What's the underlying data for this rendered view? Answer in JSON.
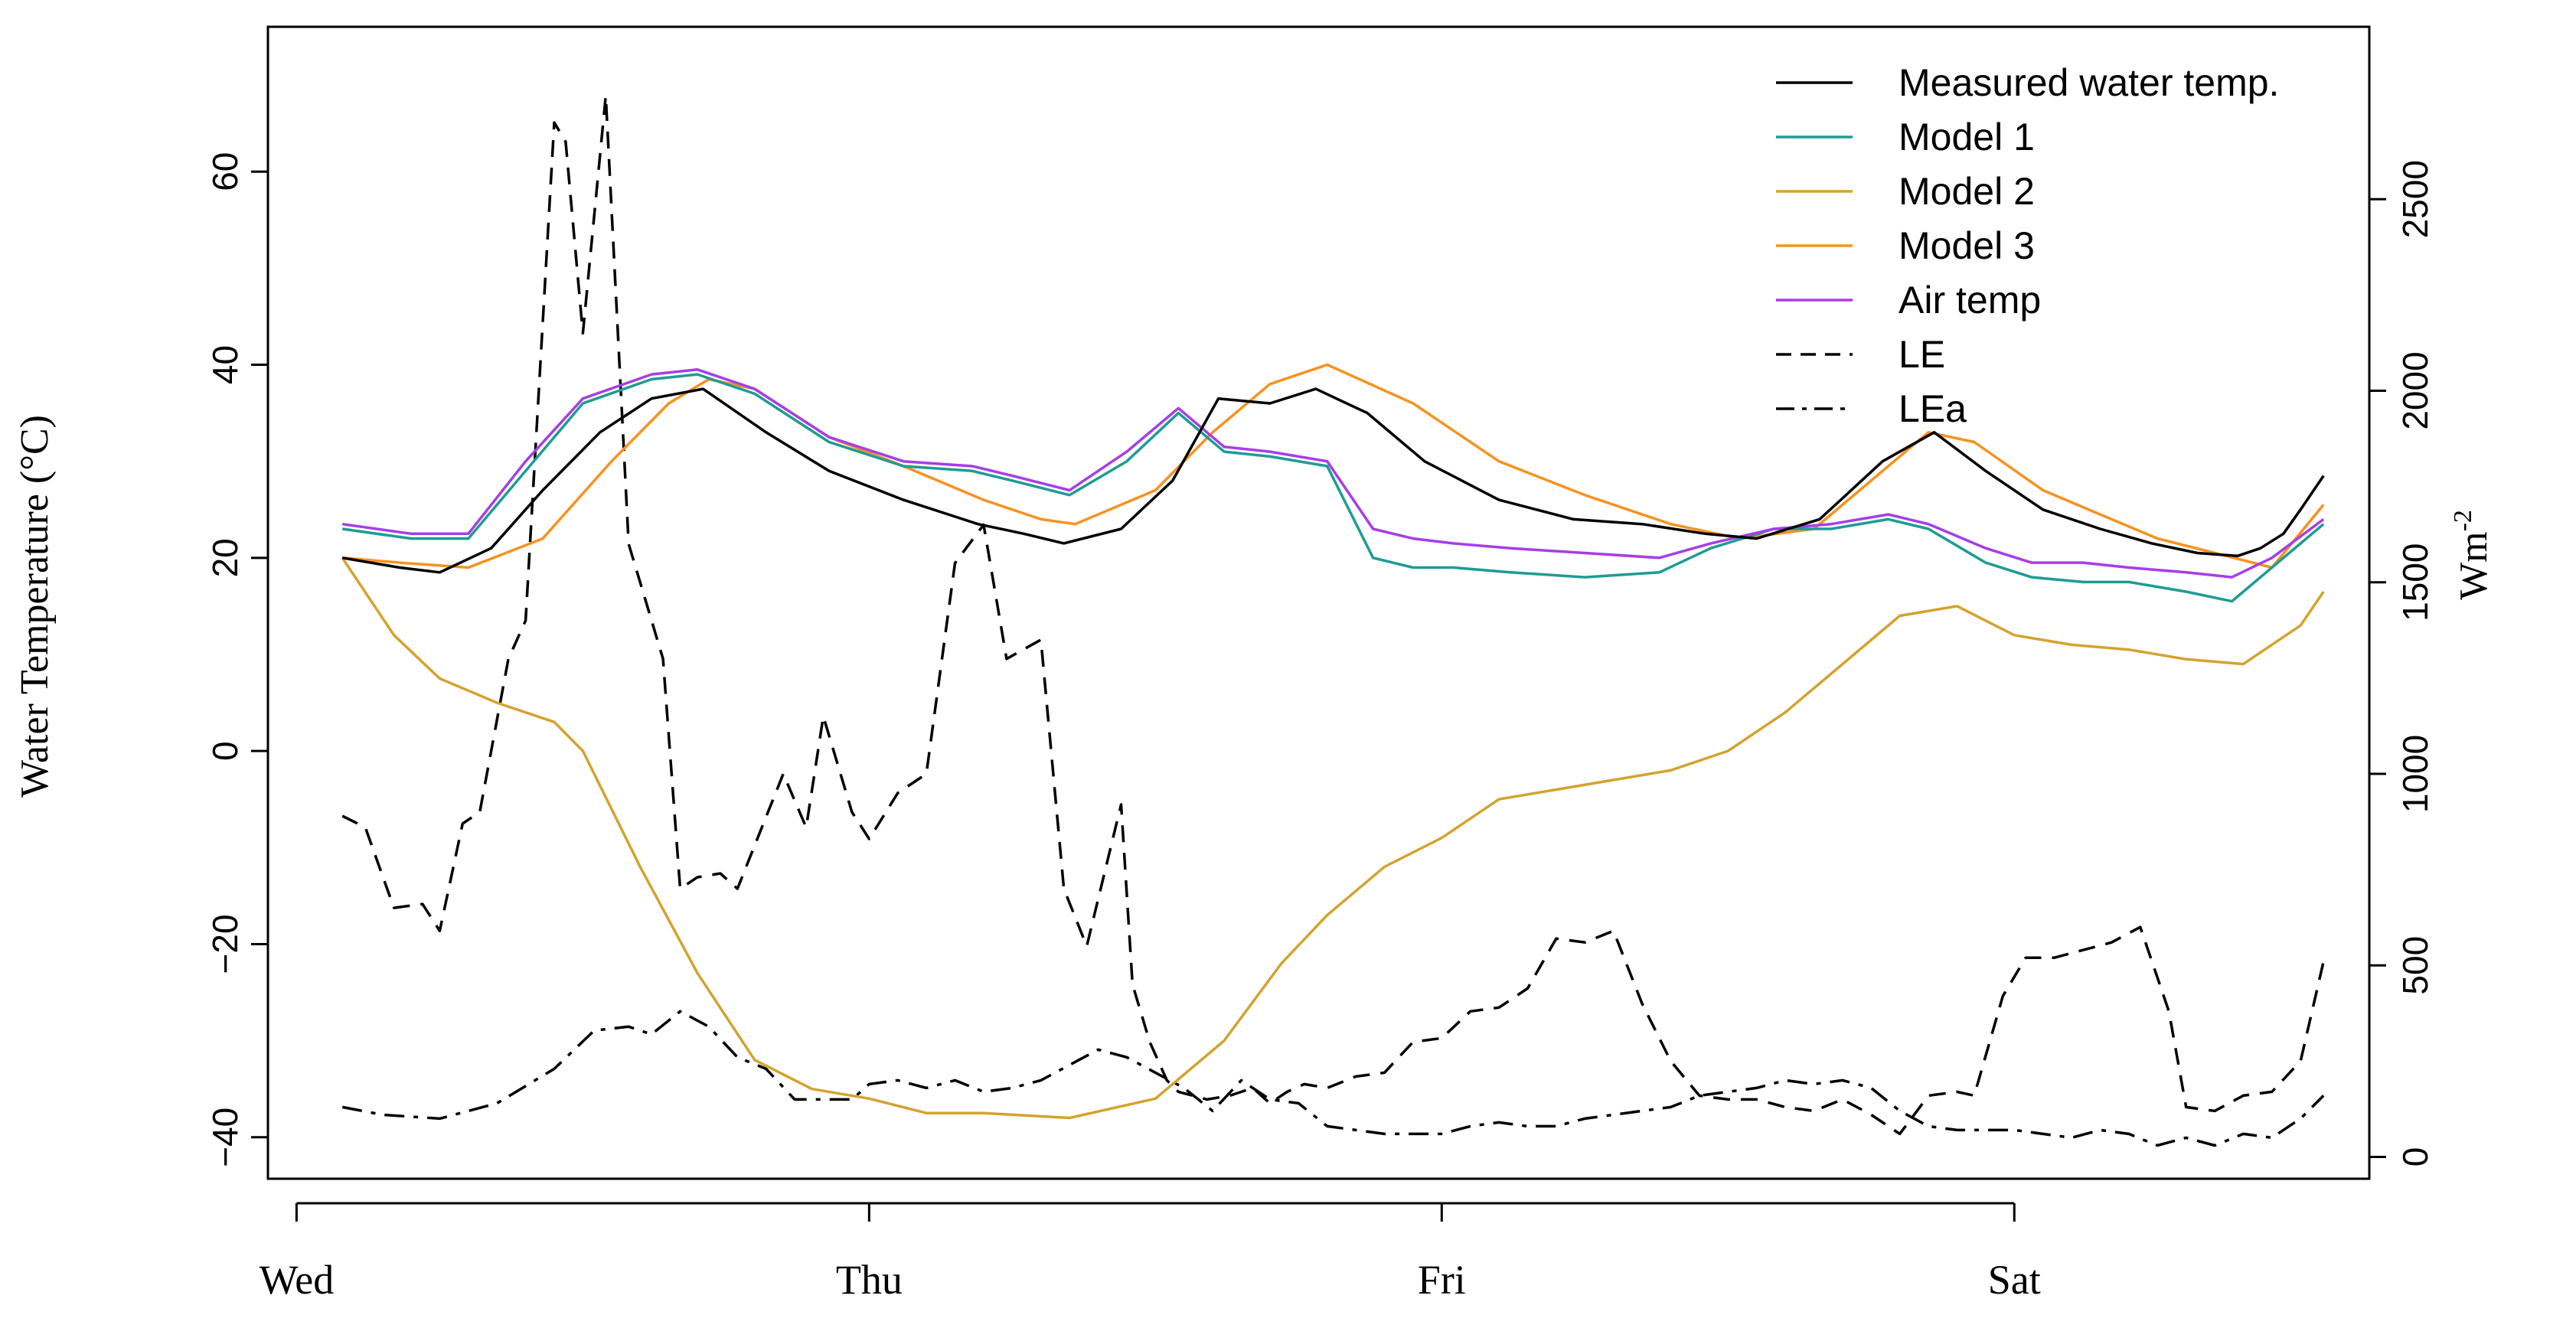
{
  "chart_data": {
    "type": "line",
    "xlabel": "",
    "ylabel": "Water Temperature (°C)",
    "y2label": "Wm",
    "y2label_sup": "-2",
    "x_tick_labels": [
      "Wed",
      "Thu",
      "Fri",
      "Sat"
    ],
    "x_tick_values": [
      0,
      1,
      2,
      3
    ],
    "xlim": [
      -0.05,
      3.62
    ],
    "ylim_left": [
      -44.3,
      75
    ],
    "ylim_right": [
      -57,
      2950
    ],
    "left_ticks": [
      -40,
      -20,
      0,
      20,
      40,
      60
    ],
    "right_ticks": [
      0,
      500,
      1000,
      1500,
      2000,
      2500
    ],
    "grid": false,
    "legend_position": "top-right",
    "series": [
      {
        "name": "Measured water temp.",
        "axis": "left",
        "color": "#000000",
        "dash": "solid",
        "x": [
          0.08,
          0.18,
          0.25,
          0.34,
          0.43,
          0.53,
          0.62,
          0.71,
          0.82,
          0.93,
          1.06,
          1.19,
          1.27,
          1.34,
          1.44,
          1.53,
          1.61,
          1.7,
          1.78,
          1.87,
          1.97,
          2.1,
          2.23,
          2.35,
          2.46,
          2.55,
          2.66,
          2.77,
          2.86,
          2.95,
          3.05,
          3.15,
          3.24,
          3.32,
          3.39,
          3.43
        ],
        "values": [
          20,
          19,
          18.5,
          21,
          27,
          33,
          36.5,
          37.5,
          33,
          29,
          26,
          23.5,
          22.5,
          21.5,
          23,
          28,
          36.5,
          36,
          37.5,
          35,
          30,
          26,
          24,
          23.5,
          22.5,
          22,
          24,
          30,
          33,
          29,
          25,
          23,
          21.5,
          20.5,
          20.2,
          21
        ],
        "x_extra": [
          3.47,
          3.5,
          3.54
        ],
        "values_extra": [
          22.5,
          25,
          28.5
        ]
      },
      {
        "name": "Model 1",
        "axis": "left",
        "color": "#1e9c94",
        "dash": "solid",
        "x": [
          0.08,
          0.2,
          0.3,
          0.4,
          0.5,
          0.62,
          0.7,
          0.8,
          0.93,
          1.06,
          1.18,
          1.25,
          1.35,
          1.45,
          1.54,
          1.62,
          1.7,
          1.8,
          1.88,
          1.95,
          2.02,
          2.12,
          2.25,
          2.38,
          2.47,
          2.58,
          2.68,
          2.78,
          2.85,
          2.95,
          3.03,
          3.12,
          3.2,
          3.3,
          3.38,
          3.45,
          3.54
        ],
        "values": [
          23,
          22,
          22,
          29,
          36,
          38.5,
          39,
          37,
          32,
          29.5,
          29,
          28,
          26.5,
          30,
          35,
          31,
          30.5,
          29.5,
          20,
          19,
          19,
          18.5,
          18,
          18.5,
          21,
          23,
          23,
          24,
          23,
          19.5,
          18,
          17.5,
          17.5,
          16.5,
          15.5,
          19,
          23.5
        ]
      },
      {
        "name": "Model 2",
        "axis": "left",
        "color": "#d4a32e",
        "dash": "solid",
        "x": [
          0.08,
          0.17,
          0.25,
          0.35,
          0.45,
          0.5,
          0.6,
          0.7,
          0.8,
          0.9,
          1.0,
          1.1,
          1.2,
          1.35,
          1.5,
          1.62,
          1.72,
          1.8,
          1.9,
          2.0,
          2.1,
          2.2,
          2.3,
          2.4,
          2.5,
          2.6,
          2.7,
          2.8,
          2.9,
          3.0,
          3.1,
          3.2,
          3.3,
          3.4,
          3.5,
          3.54
        ],
        "values": [
          20,
          12,
          7.5,
          5,
          3,
          0,
          -12,
          -23,
          -32,
          -35,
          -36,
          -37.5,
          -37.5,
          -38,
          -36,
          -30,
          -22,
          -17,
          -12,
          -9,
          -5,
          -4,
          -3,
          -2,
          0,
          4,
          9,
          14,
          15,
          12,
          11,
          10.5,
          9.5,
          9,
          13,
          16.5
        ]
      },
      {
        "name": "Model 3",
        "axis": "left",
        "color": "#f7921e",
        "dash": "solid",
        "x": [
          0.08,
          0.18,
          0.3,
          0.43,
          0.55,
          0.65,
          0.72,
          0.8,
          0.93,
          1.06,
          1.2,
          1.3,
          1.36,
          1.5,
          1.6,
          1.7,
          1.8,
          1.95,
          2.1,
          2.25,
          2.4,
          2.52,
          2.65,
          2.75,
          2.85,
          2.93,
          3.05,
          3.15,
          3.25,
          3.35,
          3.45,
          3.54
        ],
        "values": [
          20,
          19.5,
          19,
          22,
          30,
          36,
          38.5,
          37.5,
          32.5,
          29.5,
          26,
          24,
          23.5,
          27,
          33,
          38,
          40,
          36,
          30,
          26.5,
          23.5,
          22,
          23,
          28,
          33,
          32,
          27,
          24.5,
          22,
          20.5,
          19,
          25.5
        ]
      },
      {
        "name": "Air temp",
        "axis": "left",
        "color": "#a63ee8",
        "dash": "solid",
        "x": [
          0.08,
          0.2,
          0.3,
          0.4,
          0.5,
          0.62,
          0.7,
          0.8,
          0.93,
          1.06,
          1.18,
          1.25,
          1.35,
          1.45,
          1.54,
          1.62,
          1.7,
          1.8,
          1.88,
          1.95,
          2.02,
          2.12,
          2.25,
          2.38,
          2.47,
          2.58,
          2.68,
          2.78,
          2.85,
          2.95,
          3.03,
          3.12,
          3.2,
          3.3,
          3.38,
          3.45,
          3.54
        ],
        "values": [
          23.5,
          22.5,
          22.5,
          30,
          36.5,
          39,
          39.5,
          37.5,
          32.5,
          30,
          29.5,
          28.5,
          27,
          31,
          35.5,
          31.5,
          31,
          30,
          23,
          22,
          21.5,
          21,
          20.5,
          20,
          21.5,
          23,
          23.5,
          24.5,
          23.5,
          21,
          19.5,
          19.5,
          19,
          18.5,
          18,
          20,
          24
        ]
      },
      {
        "name": "LE",
        "axis": "right",
        "color": "#000000",
        "dash": "dashed",
        "x": [
          0.08,
          0.12,
          0.17,
          0.22,
          0.25,
          0.29,
          0.32,
          0.37,
          0.4,
          0.45,
          0.47,
          0.5,
          0.54,
          0.58,
          0.6,
          0.64,
          0.67,
          0.7,
          0.74,
          0.77,
          0.81,
          0.85,
          0.89,
          0.92,
          0.97,
          1.0,
          1.05,
          1.1,
          1.15,
          1.2,
          1.24,
          1.3,
          1.34,
          1.38,
          1.44,
          1.46,
          1.49,
          1.52,
          1.54,
          1.59,
          1.63,
          1.67,
          1.7,
          1.73,
          1.76,
          1.8,
          1.85,
          1.9,
          1.95,
          2.0,
          2.05,
          2.1,
          2.15,
          2.2,
          2.25,
          2.3,
          2.35,
          2.4,
          2.45,
          2.5,
          2.55,
          2.6,
          2.65,
          2.7,
          2.75,
          2.8,
          2.85,
          2.9,
          2.93,
          2.98,
          3.02,
          3.07,
          3.12,
          3.17,
          3.22,
          3.27,
          3.3,
          3.35,
          3.4,
          3.45,
          3.5,
          3.54
        ],
        "values": [
          890,
          860,
          650,
          660,
          590,
          870,
          900,
          1300,
          1400,
          2700,
          2650,
          2150,
          2770,
          1600,
          1500,
          1300,
          700,
          730,
          740,
          700,
          850,
          1000,
          860,
          1150,
          900,
          830,
          950,
          1000,
          1550,
          1650,
          1300,
          1350,
          700,
          550,
          920,
          450,
          300,
          200,
          170,
          150,
          160,
          180,
          140,
          170,
          190,
          180,
          210,
          220,
          300,
          310,
          380,
          390,
          440,
          570,
          560,
          590,
          400,
          250,
          160,
          150,
          150,
          130,
          120,
          150,
          110,
          60,
          160,
          170,
          160,
          420,
          520,
          520,
          540,
          560,
          600,
          380,
          130,
          120,
          160,
          170,
          250,
          510
        ]
      },
      {
        "name": "LEa",
        "axis": "right",
        "color": "#000000",
        "dash": "dashdot",
        "x": [
          0.08,
          0.15,
          0.25,
          0.35,
          0.45,
          0.52,
          0.58,
          0.62,
          0.67,
          0.72,
          0.77,
          0.82,
          0.87,
          0.92,
          0.97,
          1.0,
          1.05,
          1.1,
          1.15,
          1.2,
          1.25,
          1.3,
          1.35,
          1.4,
          1.45,
          1.5,
          1.55,
          1.6,
          1.65,
          1.7,
          1.75,
          1.8,
          1.85,
          1.9,
          1.95,
          2.0,
          2.05,
          2.1,
          2.15,
          2.2,
          2.25,
          2.3,
          2.35,
          2.4,
          2.45,
          2.5,
          2.55,
          2.6,
          2.65,
          2.7,
          2.75,
          2.8,
          2.85,
          2.9,
          2.95,
          3.0,
          3.05,
          3.1,
          3.15,
          3.2,
          3.25,
          3.3,
          3.35,
          3.4,
          3.45,
          3.5,
          3.54
        ],
        "values": [
          130,
          110,
          100,
          140,
          230,
          330,
          340,
          320,
          380,
          340,
          260,
          230,
          150,
          150,
          150,
          190,
          200,
          180,
          200,
          170,
          180,
          200,
          240,
          280,
          260,
          220,
          180,
          120,
          200,
          150,
          140,
          80,
          70,
          60,
          60,
          60,
          80,
          90,
          80,
          80,
          100,
          110,
          120,
          130,
          160,
          170,
          180,
          200,
          190,
          200,
          180,
          120,
          80,
          70,
          70,
          70,
          60,
          50,
          70,
          60,
          30,
          50,
          30,
          60,
          50,
          100,
          160
        ]
      }
    ]
  }
}
